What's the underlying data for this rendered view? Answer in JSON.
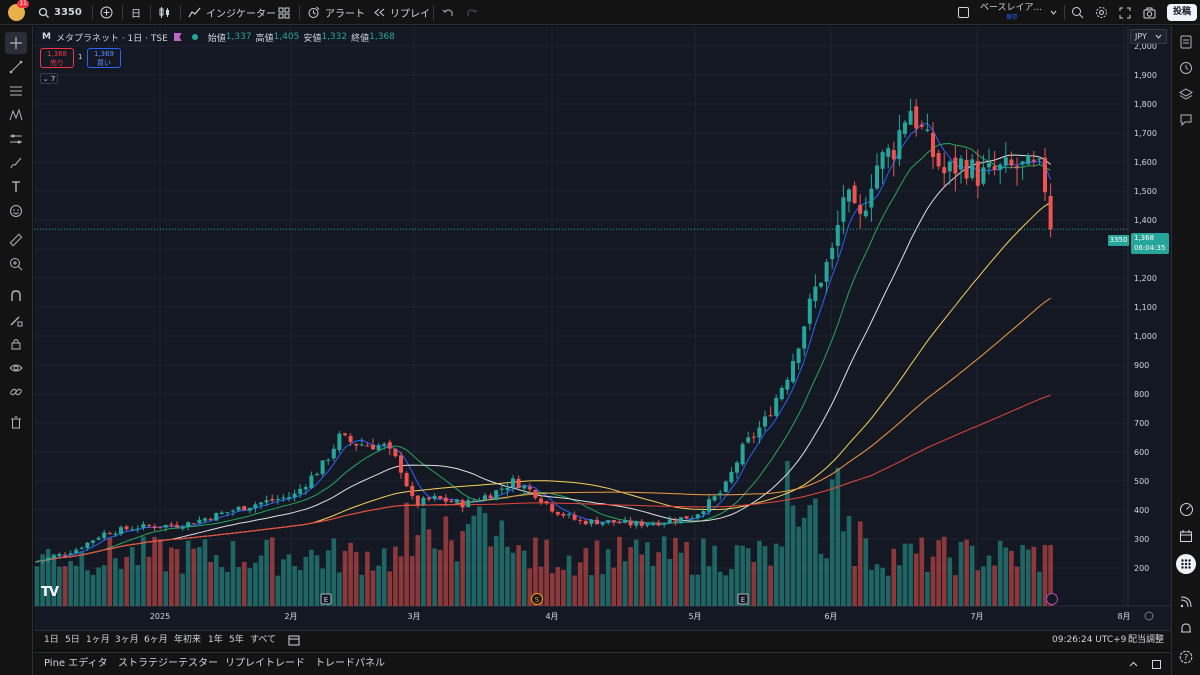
{
  "topbar": {
    "avatar_badge": "11",
    "search_symbol": "3350",
    "interval": "日",
    "indicators_label": "インジケーター",
    "alert_label": "アラート",
    "replay_label": "リプレイ",
    "layout_name": "ベースレイア...",
    "layout_status": "保存",
    "publish_label": "投稿"
  },
  "legend": {
    "symbol_prefix": "M",
    "symbol_title": "メタプラネット · 1日 · TSE",
    "open_label": "始値",
    "open": "1,337",
    "high_label": "高値",
    "high": "1,405",
    "low_label": "安値",
    "low": "1,332",
    "close_label": "終値",
    "close": "1,368",
    "sell_price": "1,368",
    "sell_label": "売り",
    "spread": "1",
    "buy_price": "1,369",
    "buy_label": "買い",
    "indicator_count": "7"
  },
  "price_axis": {
    "currency": "JPY",
    "last_price": "1,368",
    "countdown": "06:04:35",
    "symbol_tag": "3350"
  },
  "chart_data": {
    "type": "candlestick",
    "ylim": [
      100,
      2050
    ],
    "y_ticks": [
      200,
      300,
      400,
      500,
      600,
      700,
      800,
      900,
      1000,
      1100,
      1200,
      1300,
      1400,
      1500,
      1600,
      1700,
      1800,
      1900,
      2000
    ],
    "x_ticks": [
      "2025",
      "2月",
      "3月",
      "4月",
      "5月",
      "6月",
      "7月",
      "8月"
    ],
    "event_markers": [
      "E",
      "S",
      "E"
    ],
    "last_close": 1368,
    "moving_averages": [
      {
        "color": "#2962ff"
      },
      {
        "color": "#26a65b"
      },
      {
        "color": "#e0e0e0"
      },
      {
        "color": "#f7d25a"
      },
      {
        "color": "#f59b42"
      },
      {
        "color": "#e8463f"
      }
    ]
  },
  "rangebar": {
    "ranges": [
      "1日",
      "5日",
      "1ヶ月",
      "3ヶ月",
      "6ヶ月",
      "年初来",
      "1年",
      "5年",
      "すべて"
    ],
    "clock": "09:26:24 UTC+9",
    "adjust": "配当調整"
  },
  "bottompanel": {
    "tabs": [
      "Pine エディタ",
      "ストラテジーテスター",
      "リプレイトレード",
      "トレードパネル"
    ]
  },
  "colors": {
    "up": "#26a69a",
    "down": "#ef5350",
    "background": "#141823"
  }
}
